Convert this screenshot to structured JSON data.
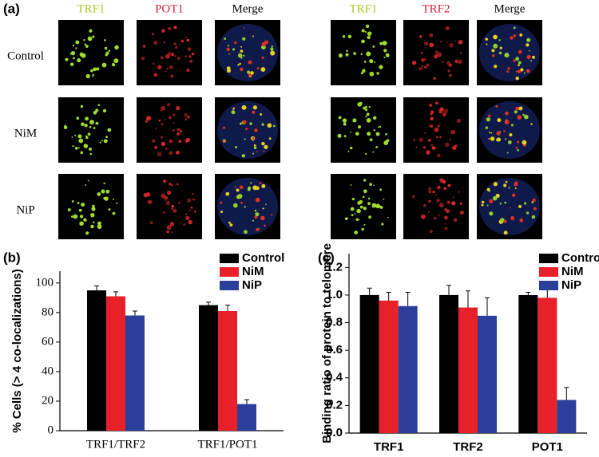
{
  "panel_a": {
    "label": "(a)",
    "left_headers": [
      "TRF1",
      "POT1",
      "Merge"
    ],
    "right_headers": [
      "TRF1",
      "TRF2",
      "Merge"
    ],
    "rows": [
      "Control",
      "NiM",
      "NiP"
    ]
  },
  "chart_data": [
    {
      "type": "bar",
      "label": "(b)",
      "y_label": "% Cells (> 4 co-localizations)",
      "categories": [
        "TRF1/TRF2",
        "TRF1/POT1"
      ],
      "series": [
        {
          "name": "Control",
          "color": "#000000",
          "values": [
            95,
            85
          ],
          "errors": [
            3,
            2
          ]
        },
        {
          "name": "NiM",
          "color": "#e8202a",
          "values": [
            91,
            81
          ],
          "errors": [
            3,
            4
          ]
        },
        {
          "name": "NiP",
          "color": "#2b3f9a",
          "values": [
            78,
            18
          ],
          "errors": [
            3,
            3
          ]
        }
      ],
      "ylim": [
        0,
        108
      ],
      "yticks": [
        0,
        20,
        40,
        60,
        80,
        100
      ],
      "legend": "top-right"
    },
    {
      "type": "bar",
      "label": "(c)",
      "y_label": "Binding ratio of protein to telomere",
      "categories": [
        "TRF1",
        "TRF2",
        "POT1"
      ],
      "series": [
        {
          "name": "Control",
          "color": "#000000",
          "values": [
            1.0,
            1.0,
            1.0
          ],
          "errors": [
            0.05,
            0.07,
            0.02
          ]
        },
        {
          "name": "NiM",
          "color": "#e8202a",
          "values": [
            0.96,
            0.91,
            0.98
          ],
          "errors": [
            0.06,
            0.12,
            0.08
          ]
        },
        {
          "name": "NiP",
          "color": "#2b3f9a",
          "values": [
            0.92,
            0.85,
            0.24
          ],
          "errors": [
            0.1,
            0.13,
            0.09
          ]
        }
      ],
      "ylim": [
        0,
        1.3
      ],
      "yticks": [
        {
          "value": 0,
          "label": "0.0"
        },
        0.2,
        0.4,
        0.6,
        0.8,
        {
          "value": 1,
          "label": "1.0"
        },
        1.2
      ],
      "legend": "top-right"
    }
  ]
}
